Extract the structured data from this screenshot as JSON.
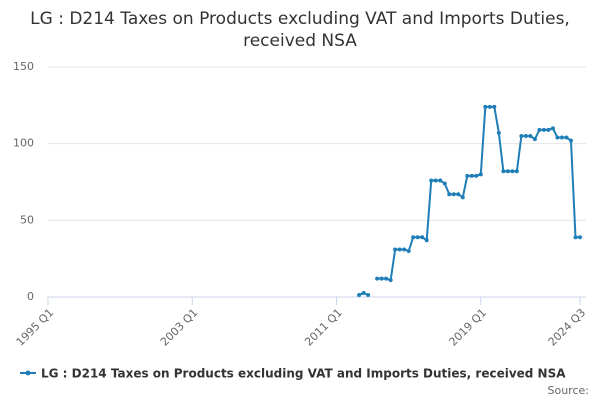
{
  "chart_data": {
    "type": "line",
    "title": "LG : D214 Taxes on Products excluding VAT and Imports Duties, received NSA",
    "categories": [
      "1995 Q1",
      "1995 Q2",
      "1995 Q3",
      "1995 Q4",
      "1996 Q1",
      "1996 Q2",
      "1996 Q3",
      "1996 Q4",
      "1997 Q1",
      "1997 Q2",
      "1997 Q3",
      "1997 Q4",
      "1998 Q1",
      "1998 Q2",
      "1998 Q3",
      "1998 Q4",
      "1999 Q1",
      "1999 Q2",
      "1999 Q3",
      "1999 Q4",
      "2000 Q1",
      "2000 Q2",
      "2000 Q3",
      "2000 Q4",
      "2001 Q1",
      "2001 Q2",
      "2001 Q3",
      "2001 Q4",
      "2002 Q1",
      "2002 Q2",
      "2002 Q3",
      "2002 Q4",
      "2003 Q1",
      "2003 Q2",
      "2003 Q3",
      "2003 Q4",
      "2004 Q1",
      "2004 Q2",
      "2004 Q3",
      "2004 Q4",
      "2005 Q1",
      "2005 Q2",
      "2005 Q3",
      "2005 Q4",
      "2006 Q1",
      "2006 Q2",
      "2006 Q3",
      "2006 Q4",
      "2007 Q1",
      "2007 Q2",
      "2007 Q3",
      "2007 Q4",
      "2008 Q1",
      "2008 Q2",
      "2008 Q3",
      "2008 Q4",
      "2009 Q1",
      "2009 Q2",
      "2009 Q3",
      "2009 Q4",
      "2010 Q1",
      "2010 Q2",
      "2010 Q3",
      "2010 Q4",
      "2011 Q1",
      "2011 Q2",
      "2011 Q3",
      "2011 Q4",
      "2012 Q1",
      "2012 Q2",
      "2012 Q3",
      "2012 Q4",
      "2013 Q1",
      "2013 Q2",
      "2013 Q3",
      "2013 Q4",
      "2014 Q1",
      "2014 Q2",
      "2014 Q3",
      "2014 Q4",
      "2015 Q1",
      "2015 Q2",
      "2015 Q3",
      "2015 Q4",
      "2016 Q1",
      "2016 Q2",
      "2016 Q3",
      "2016 Q4",
      "2017 Q1",
      "2017 Q2",
      "2017 Q3",
      "2017 Q4",
      "2018 Q1",
      "2018 Q2",
      "2018 Q3",
      "2018 Q4",
      "2019 Q1",
      "2019 Q2",
      "2019 Q3",
      "2019 Q4",
      "2020 Q1",
      "2020 Q2",
      "2020 Q3",
      "2020 Q4",
      "2021 Q1",
      "2021 Q2",
      "2021 Q3",
      "2021 Q4",
      "2022 Q1",
      "2022 Q2",
      "2022 Q3",
      "2022 Q4",
      "2023 Q1",
      "2023 Q2",
      "2023 Q3",
      "2023 Q4",
      "2024 Q1",
      "2024 Q2",
      "2024 Q3"
    ],
    "series": [
      {
        "name": "LG : D214 Taxes on Products excluding VAT and Imports Duties, received NSA",
        "color": "#1f7eb8",
        "values": [
          null,
          null,
          null,
          null,
          null,
          null,
          null,
          null,
          null,
          null,
          null,
          null,
          null,
          null,
          null,
          null,
          null,
          null,
          null,
          null,
          null,
          null,
          null,
          null,
          null,
          null,
          null,
          null,
          null,
          null,
          null,
          null,
          null,
          null,
          null,
          null,
          null,
          null,
          null,
          null,
          null,
          null,
          null,
          null,
          null,
          null,
          null,
          null,
          null,
          null,
          null,
          null,
          null,
          null,
          null,
          null,
          null,
          null,
          null,
          null,
          null,
          null,
          null,
          null,
          null,
          null,
          null,
          null,
          null,
          1.3,
          2.6,
          1.3,
          null,
          12,
          12,
          12,
          11,
          31,
          31,
          31,
          30,
          39,
          39,
          39,
          37,
          76,
          76,
          76,
          74,
          67,
          67,
          67,
          65,
          79,
          79,
          79,
          80,
          124,
          124,
          124,
          107,
          82,
          82,
          82,
          82,
          105,
          105,
          105,
          103,
          109,
          109,
          109,
          110,
          104,
          104,
          104,
          102,
          39,
          39
        ]
      }
    ],
    "xticks": [
      "1995 Q1",
      "2003 Q1",
      "2011 Q1",
      "2019 Q1",
      "2024 Q3"
    ],
    "ylim": [
      0,
      150
    ],
    "yticks": [
      0,
      50,
      100,
      150
    ],
    "grid": true,
    "source": "Source:"
  }
}
